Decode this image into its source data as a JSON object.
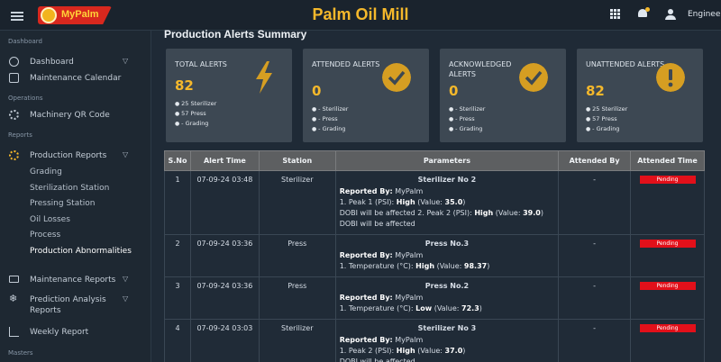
{
  "header": {
    "brand": "MyPalm",
    "title": "Palm Oil Mill",
    "user": "Engineer"
  },
  "sidebar": {
    "sections": {
      "dashboard": "Dashboard",
      "operations": "Operations",
      "reports": "Reports",
      "masters": "Masters"
    },
    "items": {
      "dashboard": "Dashboard",
      "maintenance_calendar": "Maintenance Calendar",
      "machinery_qr": "Machinery QR Code",
      "production_reports": "Production Reports",
      "grading": "Grading",
      "sterilization": "Sterilization Station",
      "pressing": "Pressing Station",
      "oil_losses": "Oil Losses",
      "process": "Process",
      "abnormalities": "Production Abnormalities",
      "maintenance_reports": "Maintenance Reports",
      "prediction_1": "Prediction Analysis",
      "prediction_2": "Reports",
      "weekly_report": "Weekly Report"
    }
  },
  "main": {
    "title": "Production Alerts Summary",
    "cards": [
      {
        "title": "TOTAL ALERTS",
        "value": "82",
        "items": [
          "25 Sterilizer",
          "57 Press",
          "- Grading"
        ]
      },
      {
        "title": "ATTENDED ALERTS",
        "value": "0",
        "items": [
          "- Sterilizer",
          "- Press",
          "- Grading"
        ]
      },
      {
        "title": "ACKNOWLEDGED ALERTS",
        "value": "0",
        "items": [
          "- Sterilizer",
          "- Press",
          "- Grading"
        ]
      },
      {
        "title": "UNATTENDED ALERTS",
        "value": "82",
        "items": [
          "25 Sterilizer",
          "57 Press",
          "- Grading"
        ]
      }
    ],
    "table": {
      "headers": [
        "S.No",
        "Alert Time",
        "Station",
        "Parameters",
        "Attended By",
        "Attended Time"
      ],
      "reported_by_label": "Reported By:",
      "rows": [
        {
          "sno": "1",
          "time": "07-09-24 03:48",
          "station": "Sterilizer",
          "ptitle": "Sterilizer No 2",
          "reporter": "MyPalm",
          "lines": [
            {
              "pre": "1. Peak 1 (PSI): ",
              "level": "High",
              "post": " (Value: ",
              "value": "35.0",
              "end": ")"
            },
            {
              "pre": "DOBI will be affected 2. Peak 2 (PSI): ",
              "level": "High",
              "post": " (Value: ",
              "value": "39.0",
              "end": ")"
            },
            {
              "pre": "DOBI will be affected",
              "level": "",
              "post": "",
              "value": "",
              "end": ""
            }
          ],
          "attended_by": "-",
          "status": "Pending"
        },
        {
          "sno": "2",
          "time": "07-09-24 03:36",
          "station": "Press",
          "ptitle": "Press No.3",
          "reporter": "MyPalm",
          "lines": [
            {
              "pre": "1. Temperature (°C): ",
              "level": "High",
              "post": " (Value: ",
              "value": "98.37",
              "end": ")"
            }
          ],
          "attended_by": "-",
          "status": "Pending"
        },
        {
          "sno": "3",
          "time": "07-09-24 03:36",
          "station": "Press",
          "ptitle": "Press No.2",
          "reporter": "MyPalm",
          "lines": [
            {
              "pre": "1. Temperature (°C): ",
              "level": "Low",
              "post": " (Value: ",
              "value": "72.3",
              "end": ")"
            }
          ],
          "attended_by": "-",
          "status": "Pending"
        },
        {
          "sno": "4",
          "time": "07-09-24 03:03",
          "station": "Sterilizer",
          "ptitle": "Sterilizer No 3",
          "reporter": "MyPalm",
          "lines": [
            {
              "pre": "1. Peak 2 (PSI): ",
              "level": "High",
              "post": " (Value: ",
              "value": "37.0",
              "end": ")"
            },
            {
              "pre": "DOBI will be affected",
              "level": "",
              "post": "",
              "value": "",
              "end": ""
            }
          ],
          "attended_by": "-",
          "status": "Pending"
        }
      ]
    }
  },
  "colors": {
    "accent": "#f5b82b",
    "pending": "#e2101a",
    "card_bg": "#3d4853",
    "background": "#1f2a36"
  }
}
